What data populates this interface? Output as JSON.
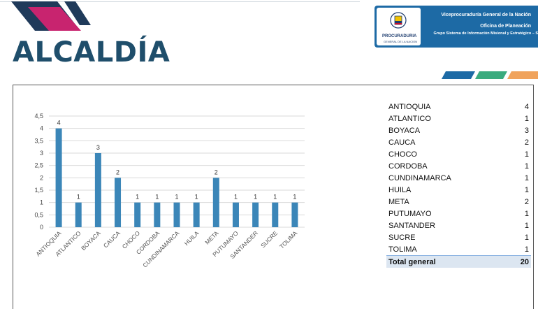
{
  "page": {
    "title": "ALCALDÍA"
  },
  "header": {
    "logo_text": "PROCURADURIA",
    "logo_subtext": "GENERAL DE LA NACION",
    "line1": "Viceprocuraduría General de la Nación",
    "line2": "Oficina de Planeación",
    "line3": "Grupo Sistema de Información Misional y Estratégico – S"
  },
  "colors": {
    "bar": "#3b86b8",
    "title": "#1f4e6b",
    "header_bg": "#1d6aa5",
    "stripe_blue": "#1d6aa5",
    "stripe_green": "#3aab7e",
    "stripe_orange": "#f0a35c",
    "total_row": "#dce6f1"
  },
  "chart_data": {
    "type": "bar",
    "categories": [
      "ANTIOQUIA",
      "ATLANTICO",
      "BOYACA",
      "CAUCA",
      "CHOCO",
      "CORDOBA",
      "CUNDINAMARCA",
      "HUILA",
      "META",
      "PUTUMAYO",
      "SANTANDER",
      "SUCRE",
      "TOLIMA"
    ],
    "values": [
      4,
      1,
      3,
      2,
      1,
      1,
      1,
      1,
      2,
      1,
      1,
      1,
      1
    ],
    "ylim": [
      0,
      4.5
    ],
    "yticks": [
      "0",
      "0,5",
      "1",
      "1,5",
      "2",
      "2,5",
      "3",
      "3,5",
      "4",
      "4,5"
    ],
    "grid": true,
    "data_labels": true
  },
  "table": {
    "rows": [
      {
        "label": "ANTIOQUIA",
        "value": "4"
      },
      {
        "label": "ATLANTICO",
        "value": "1"
      },
      {
        "label": "BOYACA",
        "value": "3"
      },
      {
        "label": "CAUCA",
        "value": "2"
      },
      {
        "label": "CHOCO",
        "value": "1"
      },
      {
        "label": "CORDOBA",
        "value": "1"
      },
      {
        "label": "CUNDINAMARCA",
        "value": "1"
      },
      {
        "label": "HUILA",
        "value": "1"
      },
      {
        "label": "META",
        "value": "2"
      },
      {
        "label": "PUTUMAYO",
        "value": "1"
      },
      {
        "label": "SANTANDER",
        "value": "1"
      },
      {
        "label": "SUCRE",
        "value": "1"
      },
      {
        "label": "TOLIMA",
        "value": "1"
      }
    ],
    "total_label": "Total general",
    "total_value": "20"
  }
}
